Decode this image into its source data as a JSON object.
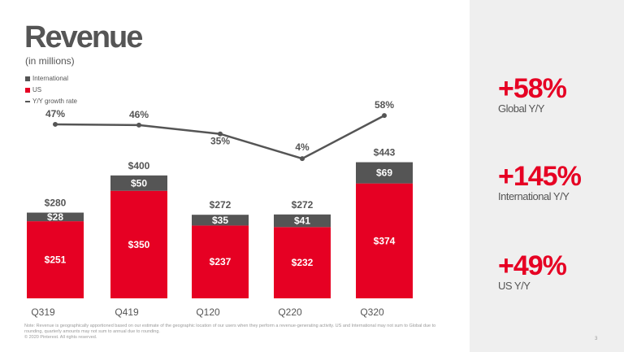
{
  "title": "Revenue",
  "subtitle": "(in millions)",
  "colors": {
    "us": "#e60023",
    "international": "#555555",
    "line": "#555555"
  },
  "chart_data": {
    "type": "bar",
    "stacked": true,
    "categories": [
      "Q319",
      "Q419",
      "Q120",
      "Q220",
      "Q320"
    ],
    "series": [
      {
        "name": "US",
        "values": [
          251,
          350,
          237,
          232,
          374
        ]
      },
      {
        "name": "International",
        "values": [
          28,
          50,
          35,
          41,
          69
        ]
      }
    ],
    "totals": [
      280,
      400,
      272,
      272,
      443
    ],
    "line_series": {
      "name": "Y/Y growth rate",
      "values": [
        47,
        46,
        35,
        4,
        58
      ],
      "labels": [
        "47%",
        "46%",
        "35%",
        "4%",
        "58%"
      ]
    },
    "legend": [
      "International",
      "US",
      "Y/Y growth rate"
    ],
    "legend_position": "top-left",
    "grid": false
  },
  "stats": [
    {
      "value": "+58%",
      "label": "Global Y/Y"
    },
    {
      "value": "+145%",
      "label": "International Y/Y"
    },
    {
      "value": "+49%",
      "label": "US Y/Y"
    }
  ],
  "note": "Note: Revenue is geographically apportioned based on our estimate of the geographic location of our users when they perform a revenue-generating activity. US and International may not sum to Global due to rounding, quarterly amounts may not sum to annual due to rounding.",
  "copyright": "© 2020 Pinterest. All rights reserved.",
  "page_number": "3"
}
